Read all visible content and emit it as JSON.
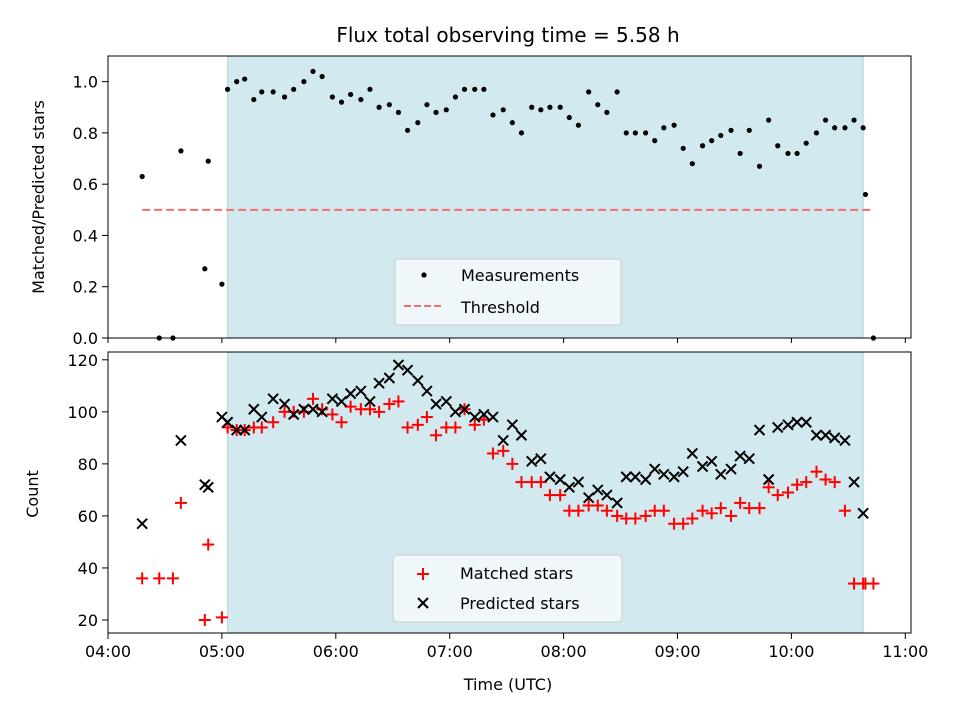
{
  "chart_data": [
    {
      "type": "scatter",
      "title": "Flux total observing time = 5.58 h",
      "xlabel": "",
      "ylabel": "Matched/Predicted stars",
      "xlim_hours": [
        4.0,
        11.05
      ],
      "ylim": [
        0.0,
        1.1
      ],
      "yticks": [
        0.0,
        0.2,
        0.4,
        0.6,
        0.8,
        1.0
      ],
      "ytick_labels": [
        "0.0",
        "0.2",
        "0.4",
        "0.6",
        "0.8",
        "1.0"
      ],
      "shaded_region_hours": [
        5.05,
        10.63
      ],
      "shaded_color": "#d2e9ef",
      "threshold": {
        "name": "Threshold",
        "value": 0.5,
        "x_range_hours": [
          4.3,
          10.72
        ],
        "color": "#f07070"
      },
      "legend": {
        "position": "lower-center",
        "entries": [
          "Measurements",
          "Threshold"
        ]
      },
      "series": [
        {
          "name": "Measurements",
          "marker": "dot",
          "color": "#000000",
          "x_hours": [
            4.3,
            4.45,
            4.57,
            4.64,
            4.85,
            4.88,
            5.0,
            5.05,
            5.13,
            5.2,
            5.28,
            5.35,
            5.45,
            5.55,
            5.63,
            5.72,
            5.8,
            5.88,
            5.97,
            6.05,
            6.13,
            6.22,
            6.3,
            6.38,
            6.47,
            6.55,
            6.63,
            6.72,
            6.8,
            6.88,
            6.97,
            7.05,
            7.13,
            7.22,
            7.3,
            7.38,
            7.47,
            7.55,
            7.63,
            7.72,
            7.8,
            7.88,
            7.97,
            8.05,
            8.13,
            8.22,
            8.3,
            8.38,
            8.47,
            8.55,
            8.63,
            8.72,
            8.8,
            8.88,
            8.97,
            9.05,
            9.13,
            9.22,
            9.3,
            9.38,
            9.47,
            9.55,
            9.63,
            9.72,
            9.8,
            9.88,
            9.97,
            10.05,
            10.13,
            10.22,
            10.3,
            10.38,
            10.47,
            10.55,
            10.63,
            10.65,
            10.72
          ],
          "y": [
            0.63,
            0.0,
            0.0,
            0.73,
            0.27,
            0.69,
            0.21,
            0.97,
            1.0,
            1.01,
            0.93,
            0.96,
            0.96,
            0.94,
            0.97,
            1.0,
            1.04,
            1.02,
            0.94,
            0.92,
            0.95,
            0.93,
            0.97,
            0.9,
            0.91,
            0.88,
            0.81,
            0.84,
            0.91,
            0.88,
            0.89,
            0.94,
            0.97,
            0.97,
            0.97,
            0.87,
            0.89,
            0.84,
            0.8,
            0.9,
            0.89,
            0.9,
            0.9,
            0.86,
            0.83,
            0.96,
            0.91,
            0.88,
            0.96,
            0.8,
            0.8,
            0.8,
            0.77,
            0.82,
            0.83,
            0.74,
            0.68,
            0.75,
            0.77,
            0.79,
            0.81,
            0.72,
            0.81,
            0.67,
            0.85,
            0.75,
            0.72,
            0.72,
            0.76,
            0.8,
            0.85,
            0.82,
            0.82,
            0.85,
            0.82,
            0.56,
            0.0
          ]
        }
      ]
    },
    {
      "type": "scatter",
      "title": "",
      "xlabel": "Time (UTC)",
      "ylabel": "Count",
      "xlim_hours": [
        4.0,
        11.05
      ],
      "xticks_hours": [
        4,
        5,
        6,
        7,
        8,
        9,
        10,
        11
      ],
      "xtick_labels": [
        "04:00",
        "05:00",
        "06:00",
        "07:00",
        "08:00",
        "09:00",
        "10:00",
        "11:00"
      ],
      "ylim": [
        15,
        123
      ],
      "yticks": [
        20,
        40,
        60,
        80,
        100,
        120
      ],
      "ytick_labels": [
        "20",
        "40",
        "60",
        "80",
        "100",
        "120"
      ],
      "shaded_region_hours": [
        5.05,
        10.63
      ],
      "shaded_color": "#d2e9ef",
      "legend": {
        "position": "lower-center",
        "entries": [
          "Matched stars",
          "Predicted stars"
        ]
      },
      "series": [
        {
          "name": "Matched stars",
          "marker": "plus",
          "color": "#ff0000",
          "x_hours": [
            4.3,
            4.45,
            4.57,
            4.64,
            4.85,
            4.88,
            5.0,
            5.05,
            5.13,
            5.2,
            5.28,
            5.35,
            5.45,
            5.55,
            5.63,
            5.72,
            5.8,
            5.88,
            5.97,
            6.05,
            6.13,
            6.22,
            6.3,
            6.38,
            6.47,
            6.55,
            6.63,
            6.72,
            6.8,
            6.88,
            6.97,
            7.05,
            7.13,
            7.22,
            7.3,
            7.38,
            7.47,
            7.55,
            7.63,
            7.72,
            7.8,
            7.88,
            7.97,
            8.05,
            8.13,
            8.22,
            8.3,
            8.38,
            8.47,
            8.55,
            8.63,
            8.72,
            8.8,
            8.88,
            8.97,
            9.05,
            9.13,
            9.22,
            9.3,
            9.38,
            9.47,
            9.55,
            9.63,
            9.72,
            9.8,
            9.88,
            9.97,
            10.05,
            10.13,
            10.22,
            10.3,
            10.38,
            10.47,
            10.55,
            10.63,
            10.65,
            10.72
          ],
          "y": [
            36,
            36,
            36,
            65,
            20,
            49,
            21,
            94,
            93,
            93,
            94,
            94,
            96,
            100,
            100,
            100,
            105,
            101,
            99,
            96,
            102,
            101,
            101,
            100,
            103,
            104,
            94,
            95,
            98,
            91,
            94,
            94,
            101,
            95,
            97,
            84,
            85,
            80,
            73,
            73,
            73,
            68,
            68,
            62,
            62,
            64,
            64,
            62,
            60,
            59,
            59,
            60,
            62,
            62,
            57,
            57,
            59,
            62,
            61,
            63,
            60,
            65,
            63,
            63,
            71,
            68,
            69,
            72,
            73,
            77,
            74,
            73,
            62,
            34,
            34,
            34,
            34
          ]
        },
        {
          "name": "Predicted stars",
          "marker": "x",
          "color": "#000000",
          "x_hours": [
            4.3,
            4.64,
            4.85,
            4.88,
            5.0,
            5.05,
            5.13,
            5.2,
            5.28,
            5.35,
            5.45,
            5.55,
            5.63,
            5.72,
            5.8,
            5.88,
            5.97,
            6.05,
            6.13,
            6.22,
            6.3,
            6.38,
            6.47,
            6.55,
            6.63,
            6.72,
            6.8,
            6.88,
            6.97,
            7.05,
            7.13,
            7.22,
            7.3,
            7.38,
            7.47,
            7.55,
            7.63,
            7.72,
            7.8,
            7.88,
            7.97,
            8.05,
            8.13,
            8.22,
            8.3,
            8.38,
            8.47,
            8.55,
            8.63,
            8.72,
            8.8,
            8.88,
            8.97,
            9.05,
            9.13,
            9.22,
            9.3,
            9.38,
            9.47,
            9.55,
            9.63,
            9.72,
            9.8,
            9.88,
            9.97,
            10.05,
            10.13,
            10.22,
            10.3,
            10.38,
            10.47,
            10.55,
            10.63
          ],
          "y": [
            57,
            89,
            72,
            71,
            98,
            96,
            93,
            93,
            101,
            98,
            105,
            103,
            99,
            101,
            101,
            100,
            105,
            104,
            107,
            108,
            104,
            111,
            113,
            118,
            116,
            112,
            108,
            103,
            104,
            100,
            101,
            98,
            99,
            98,
            89,
            95,
            91,
            81,
            82,
            75,
            74,
            71,
            73,
            67,
            70,
            68,
            65,
            75,
            75,
            74,
            78,
            76,
            75,
            77,
            84,
            79,
            81,
            76,
            78,
            83,
            82,
            93,
            74,
            94,
            95,
            96,
            96,
            91,
            91,
            90,
            89,
            73,
            61
          ]
        }
      ]
    }
  ]
}
